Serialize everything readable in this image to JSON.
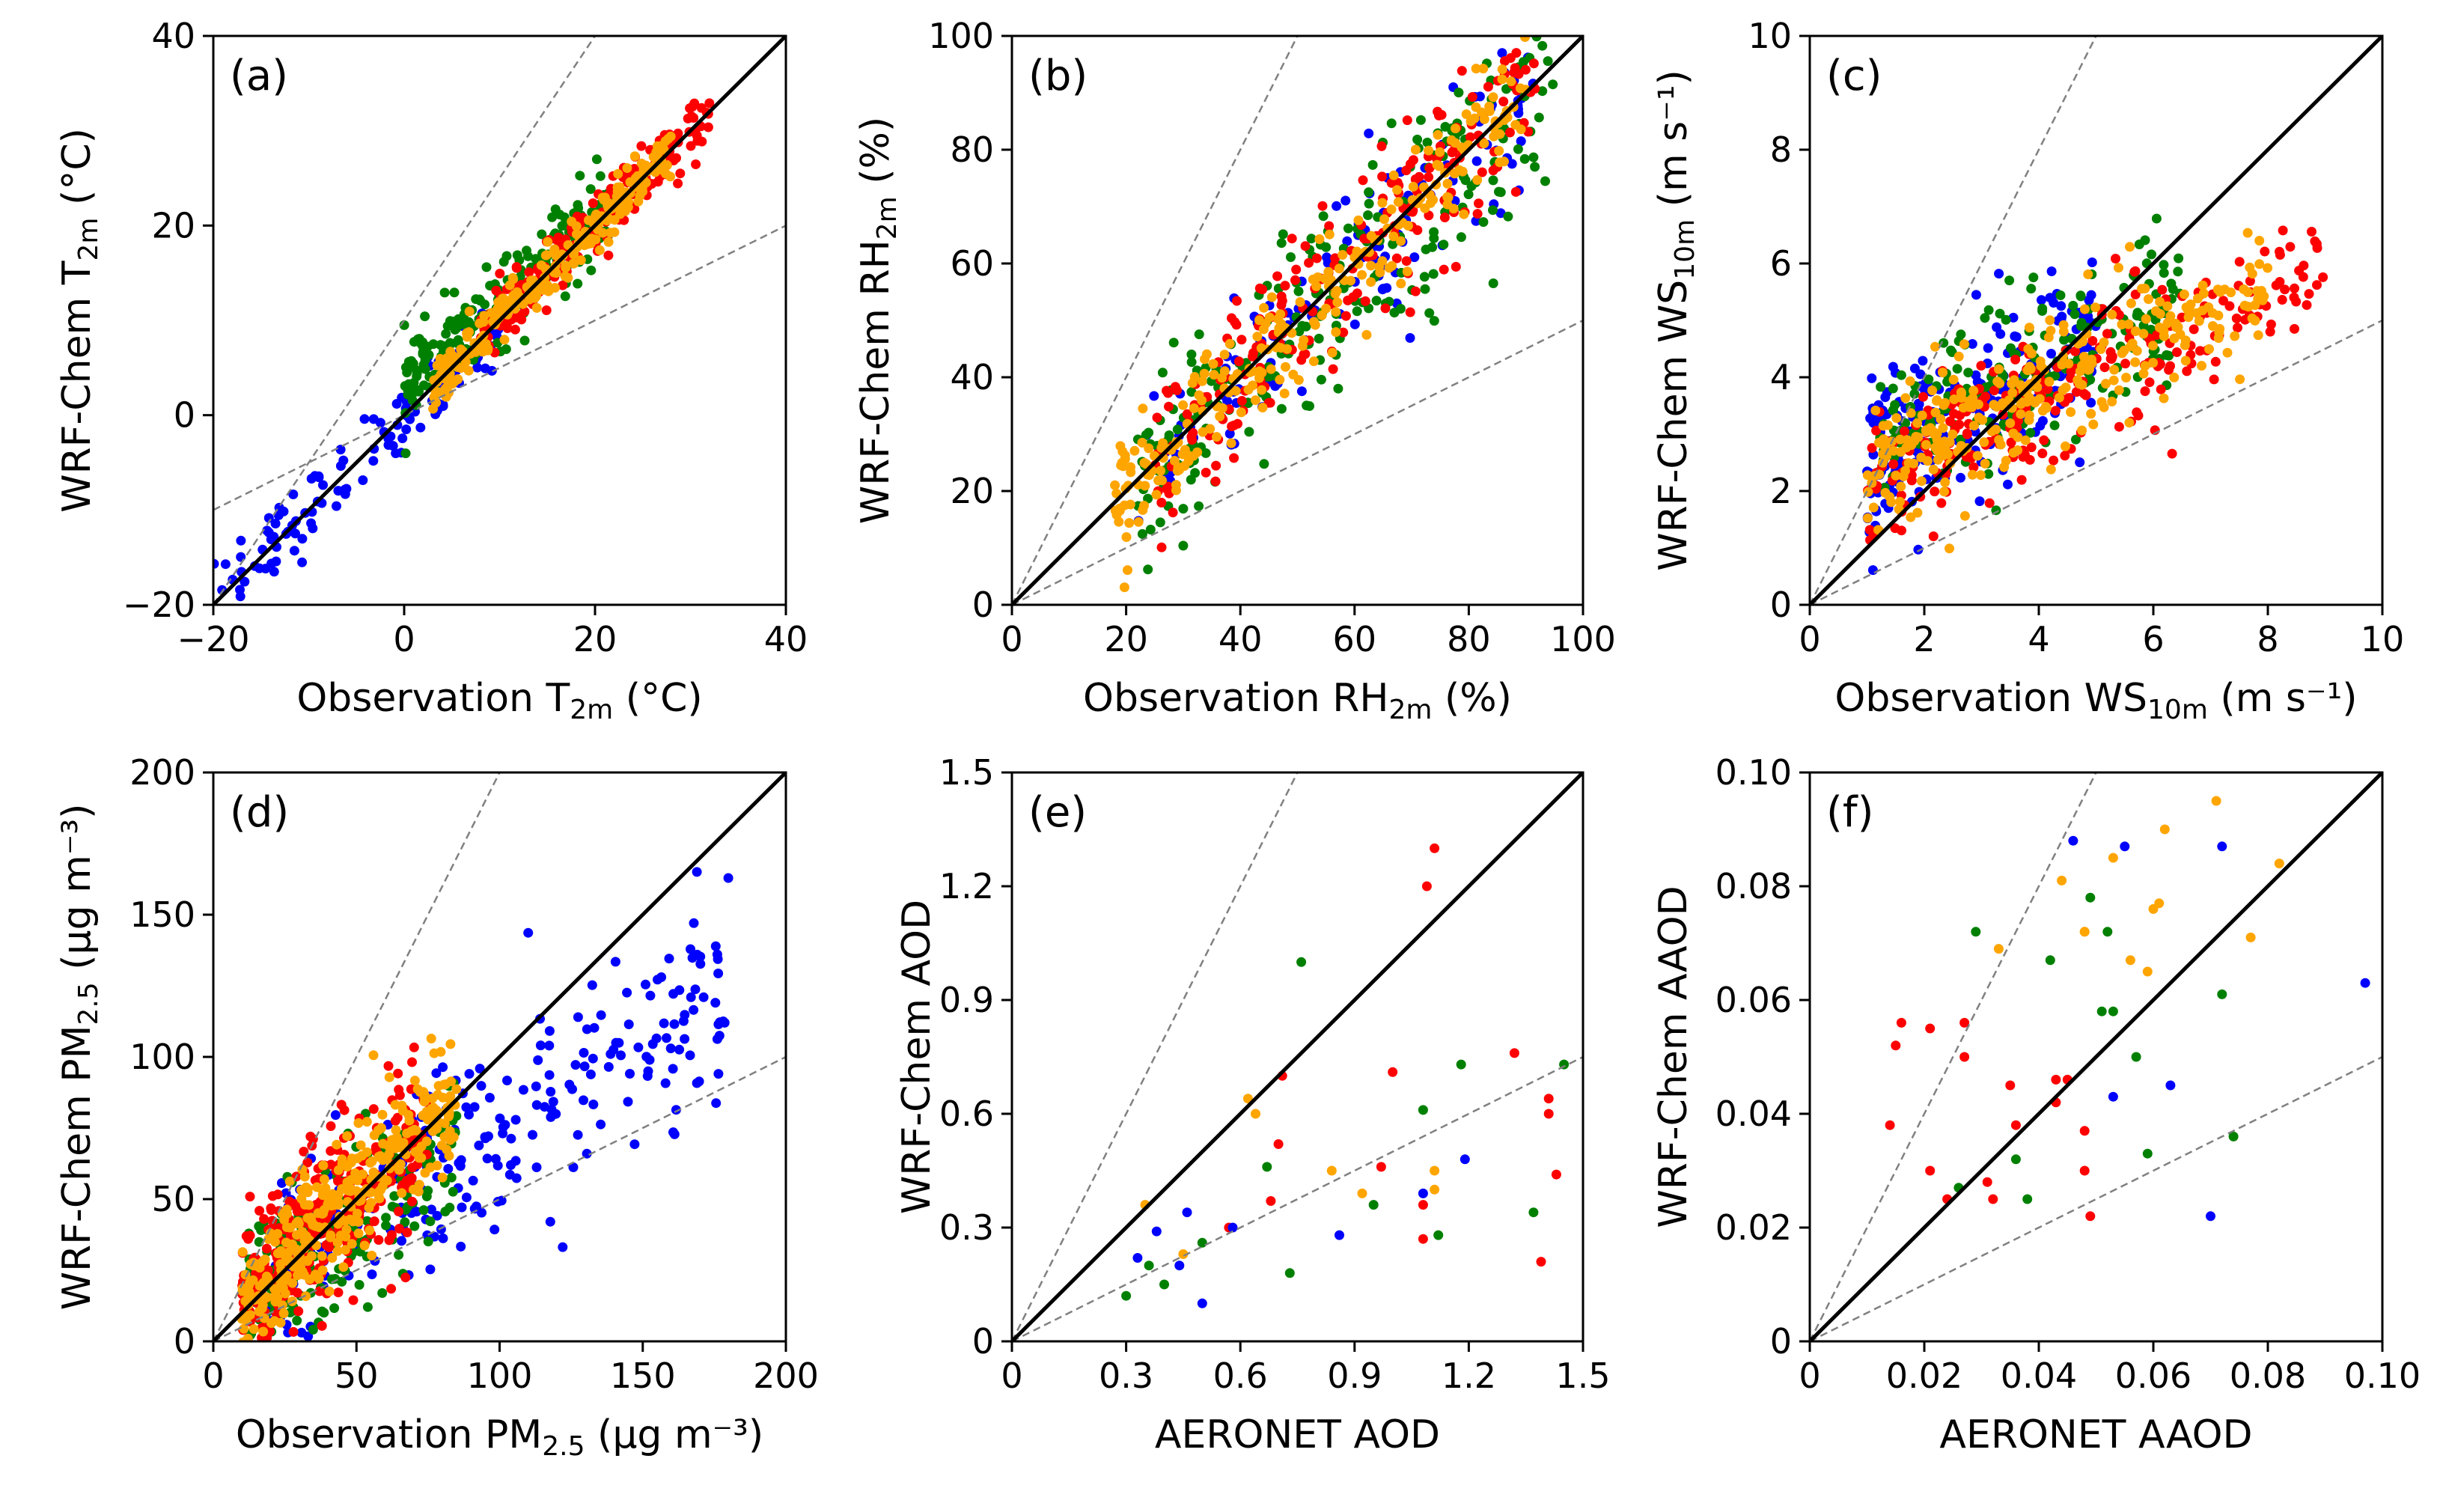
{
  "figure": {
    "series_colors": {
      "blue": "#0000ff",
      "green": "#008000",
      "red": "#ff0000",
      "orange": "#ffa500"
    },
    "line_colors": {
      "one_to_one": "#000000",
      "factor_two": "#808080"
    }
  },
  "chart_data": [
    {
      "panel": "(a)",
      "type": "scatter",
      "xlabel": {
        "main": "Observation T",
        "sub": "2m",
        "unit": " (°C)"
      },
      "ylabel": {
        "main": "WRF-Chem T",
        "sub": "2m",
        "unit": " (°C)"
      },
      "xlim": [
        -20,
        40
      ],
      "ylim": [
        -20,
        40
      ],
      "xticks": [
        -20,
        0,
        20,
        40
      ],
      "yticks": [
        -20,
        0,
        20,
        40
      ],
      "xtick_labels": [
        "−20",
        "0",
        "20",
        "40"
      ],
      "ytick_labels": [
        "−20",
        "0",
        "20",
        "40"
      ],
      "reference_lines": [
        "1:1",
        "2:1",
        "1:2"
      ],
      "clouds": [
        {
          "color": "blue",
          "n": 120,
          "x_range": [
            -20,
            10
          ],
          "slope": 1.0,
          "intercept": 0,
          "spread": 2.0
        },
        {
          "color": "green",
          "n": 220,
          "x_range": [
            0,
            22
          ],
          "slope": 0.85,
          "intercept": 3.5,
          "spread": 2.2
        },
        {
          "color": "red",
          "n": 220,
          "x_range": [
            8,
            32
          ],
          "slope": 1.0,
          "intercept": 0,
          "spread": 1.6
        },
        {
          "color": "orange",
          "n": 250,
          "x_range": [
            3,
            28
          ],
          "slope": 1.0,
          "intercept": 0,
          "spread": 1.3
        }
      ]
    },
    {
      "panel": "(b)",
      "type": "scatter",
      "xlabel": {
        "main": "Observation RH",
        "sub": "2m",
        "unit": " (%)"
      },
      "ylabel": {
        "main": "WRF-Chem RH",
        "sub": "2m",
        "unit": " (%)"
      },
      "xlim": [
        0,
        100
      ],
      "ylim": [
        0,
        100
      ],
      "xticks": [
        0,
        20,
        40,
        60,
        80,
        100
      ],
      "yticks": [
        0,
        20,
        40,
        60,
        80,
        100
      ],
      "xtick_labels": [
        "0",
        "20",
        "40",
        "60",
        "80",
        "100"
      ],
      "ytick_labels": [
        "0",
        "20",
        "40",
        "60",
        "80",
        "100"
      ],
      "reference_lines": [
        "1:1",
        "2:1",
        "1:2"
      ],
      "clouds": [
        {
          "color": "blue",
          "n": 130,
          "x_range": [
            22,
            92
          ],
          "slope": 1.0,
          "intercept": 0,
          "spread": 8
        },
        {
          "color": "green",
          "n": 230,
          "x_range": [
            22,
            95
          ],
          "slope": 0.95,
          "intercept": 0,
          "spread": 9
        },
        {
          "color": "red",
          "n": 220,
          "x_range": [
            25,
            92
          ],
          "slope": 1.0,
          "intercept": 0,
          "spread": 7
        },
        {
          "color": "orange",
          "n": 260,
          "x_range": [
            18,
            90
          ],
          "slope": 1.0,
          "intercept": 0,
          "spread": 5
        }
      ]
    },
    {
      "panel": "(c)",
      "type": "scatter",
      "xlabel": {
        "main": "Observation WS",
        "sub": "10m",
        "unit": " (m s⁻¹)"
      },
      "ylabel": {
        "main": "WRF-Chem WS",
        "sub": "10m",
        "unit": " (m s⁻¹)"
      },
      "xlim": [
        0,
        10
      ],
      "ylim": [
        0,
        10
      ],
      "xticks": [
        0,
        2,
        4,
        6,
        8,
        10
      ],
      "yticks": [
        0,
        2,
        4,
        6,
        8,
        10
      ],
      "xtick_labels": [
        "0",
        "2",
        "4",
        "6",
        "8",
        "10"
      ],
      "ytick_labels": [
        "0",
        "2",
        "4",
        "6",
        "8",
        "10"
      ],
      "reference_lines": [
        "1:1",
        "2:1",
        "1:2"
      ],
      "clouds": [
        {
          "color": "blue",
          "n": 220,
          "x_range": [
            1,
            5
          ],
          "slope": 0.5,
          "intercept": 2.0,
          "spread": 0.8
        },
        {
          "color": "green",
          "n": 200,
          "x_range": [
            1.2,
            6.5
          ],
          "slope": 0.45,
          "intercept": 2.3,
          "spread": 0.7
        },
        {
          "color": "red",
          "n": 260,
          "x_range": [
            1,
            9
          ],
          "slope": 0.45,
          "intercept": 1.8,
          "spread": 0.6
        },
        {
          "color": "orange",
          "n": 300,
          "x_range": [
            1,
            8
          ],
          "slope": 0.5,
          "intercept": 1.8,
          "spread": 0.6
        }
      ]
    },
    {
      "panel": "(d)",
      "type": "scatter",
      "xlabel": {
        "main": "Observation PM",
        "sub": "2.5",
        "unit": " (µg m⁻³)"
      },
      "ylabel": {
        "main": "WRF-Chem PM",
        "sub": "2.5",
        "unit": " (µg m⁻³)"
      },
      "xlim": [
        0,
        200
      ],
      "ylim": [
        0,
        200
      ],
      "xticks": [
        0,
        50,
        100,
        150,
        200
      ],
      "yticks": [
        0,
        50,
        100,
        150,
        200
      ],
      "xtick_labels": [
        "0",
        "50",
        "100",
        "150",
        "200"
      ],
      "ytick_labels": [
        "0",
        "50",
        "100",
        "150",
        "200"
      ],
      "reference_lines": [
        "1:1",
        "2:1",
        "1:2"
      ],
      "clouds": [
        {
          "color": "blue",
          "n": 260,
          "x_range": [
            20,
            180
          ],
          "slope": 0.65,
          "intercept": 8,
          "spread": 18
        },
        {
          "color": "green",
          "n": 200,
          "x_range": [
            12,
            85
          ],
          "slope": 0.7,
          "intercept": 8,
          "spread": 14
        },
        {
          "color": "red",
          "n": 320,
          "x_range": [
            10,
            75
          ],
          "slope": 0.95,
          "intercept": 5,
          "spread": 15
        },
        {
          "color": "orange",
          "n": 340,
          "x_range": [
            10,
            85
          ],
          "slope": 1.0,
          "intercept": 3,
          "spread": 11
        }
      ]
    },
    {
      "panel": "(e)",
      "type": "scatter",
      "xlabel": {
        "main": "AERONET AOD",
        "sub": "",
        "unit": ""
      },
      "ylabel": {
        "main": "WRF-Chem AOD",
        "sub": "",
        "unit": ""
      },
      "xlim": [
        0,
        1.5
      ],
      "ylim": [
        0,
        1.5
      ],
      "xticks": [
        0,
        0.3,
        0.6,
        0.9,
        1.2,
        1.5
      ],
      "yticks": [
        0,
        0.3,
        0.6,
        0.9,
        1.2,
        1.5
      ],
      "xtick_labels": [
        "0",
        "0.3",
        "0.6",
        "0.9",
        "1.2",
        "1.5"
      ],
      "ytick_labels": [
        "0",
        "0.3",
        "0.6",
        "0.9",
        "1.2",
        "1.5"
      ],
      "reference_lines": [
        "1:1",
        "2:1",
        "1:2"
      ],
      "points": [
        {
          "color": "red",
          "x": 1.11,
          "y": 1.3
        },
        {
          "color": "red",
          "x": 1.09,
          "y": 1.2
        },
        {
          "color": "red",
          "x": 0.71,
          "y": 0.7
        },
        {
          "color": "red",
          "x": 1.0,
          "y": 0.71
        },
        {
          "color": "red",
          "x": 1.32,
          "y": 0.76
        },
        {
          "color": "red",
          "x": 1.41,
          "y": 0.64
        },
        {
          "color": "red",
          "x": 1.41,
          "y": 0.6
        },
        {
          "color": "red",
          "x": 1.43,
          "y": 0.44
        },
        {
          "color": "red",
          "x": 1.39,
          "y": 0.21
        },
        {
          "color": "red",
          "x": 1.08,
          "y": 0.36
        },
        {
          "color": "red",
          "x": 1.08,
          "y": 0.27
        },
        {
          "color": "red",
          "x": 0.97,
          "y": 0.46
        },
        {
          "color": "red",
          "x": 0.7,
          "y": 0.52
        },
        {
          "color": "red",
          "x": 0.68,
          "y": 0.37
        },
        {
          "color": "red",
          "x": 0.57,
          "y": 0.3
        },
        {
          "color": "green",
          "x": 0.76,
          "y": 1.0
        },
        {
          "color": "green",
          "x": 1.18,
          "y": 0.73
        },
        {
          "color": "green",
          "x": 1.45,
          "y": 0.73
        },
        {
          "color": "green",
          "x": 1.08,
          "y": 0.61
        },
        {
          "color": "green",
          "x": 0.95,
          "y": 0.36
        },
        {
          "color": "green",
          "x": 0.67,
          "y": 0.46
        },
        {
          "color": "green",
          "x": 0.36,
          "y": 0.2
        },
        {
          "color": "green",
          "x": 0.4,
          "y": 0.15
        },
        {
          "color": "green",
          "x": 0.3,
          "y": 0.12
        },
        {
          "color": "green",
          "x": 0.5,
          "y": 0.26
        },
        {
          "color": "green",
          "x": 1.12,
          "y": 0.28
        },
        {
          "color": "green",
          "x": 1.37,
          "y": 0.34
        },
        {
          "color": "green",
          "x": 0.73,
          "y": 0.18
        },
        {
          "color": "orange",
          "x": 0.35,
          "y": 0.36
        },
        {
          "color": "orange",
          "x": 0.64,
          "y": 0.6
        },
        {
          "color": "orange",
          "x": 0.62,
          "y": 0.64
        },
        {
          "color": "orange",
          "x": 0.84,
          "y": 0.45
        },
        {
          "color": "orange",
          "x": 0.92,
          "y": 0.39
        },
        {
          "color": "orange",
          "x": 1.11,
          "y": 0.45
        },
        {
          "color": "orange",
          "x": 1.11,
          "y": 0.4
        },
        {
          "color": "orange",
          "x": 0.45,
          "y": 0.23
        },
        {
          "color": "blue",
          "x": 0.33,
          "y": 0.22
        },
        {
          "color": "blue",
          "x": 0.38,
          "y": 0.29
        },
        {
          "color": "blue",
          "x": 0.46,
          "y": 0.34
        },
        {
          "color": "blue",
          "x": 0.5,
          "y": 0.1
        },
        {
          "color": "blue",
          "x": 0.44,
          "y": 0.2
        },
        {
          "color": "blue",
          "x": 0.86,
          "y": 0.28
        },
        {
          "color": "blue",
          "x": 1.19,
          "y": 0.48
        },
        {
          "color": "blue",
          "x": 1.08,
          "y": 0.39
        },
        {
          "color": "blue",
          "x": 0.58,
          "y": 0.3
        }
      ]
    },
    {
      "panel": "(f)",
      "type": "scatter",
      "xlabel": {
        "main": "AERONET AAOD",
        "sub": "",
        "unit": ""
      },
      "ylabel": {
        "main": "WRF-Chem AAOD",
        "sub": "",
        "unit": ""
      },
      "xlim": [
        0,
        0.1
      ],
      "ylim": [
        0,
        0.1
      ],
      "xticks": [
        0,
        0.02,
        0.04,
        0.06,
        0.08,
        0.1
      ],
      "yticks": [
        0,
        0.02,
        0.04,
        0.06,
        0.08,
        0.1
      ],
      "xtick_labels": [
        "0",
        "0.02",
        "0.04",
        "0.06",
        "0.08",
        "0.10"
      ],
      "ytick_labels": [
        "0",
        "0.02",
        "0.04",
        "0.06",
        "0.08",
        "0.10"
      ],
      "reference_lines": [
        "1:1",
        "2:1",
        "1:2"
      ],
      "points": [
        {
          "color": "red",
          "x": 0.015,
          "y": 0.052
        },
        {
          "color": "red",
          "x": 0.016,
          "y": 0.056
        },
        {
          "color": "red",
          "x": 0.021,
          "y": 0.055
        },
        {
          "color": "red",
          "x": 0.014,
          "y": 0.038
        },
        {
          "color": "red",
          "x": 0.021,
          "y": 0.03
        },
        {
          "color": "red",
          "x": 0.027,
          "y": 0.056
        },
        {
          "color": "red",
          "x": 0.027,
          "y": 0.05
        },
        {
          "color": "red",
          "x": 0.031,
          "y": 0.028
        },
        {
          "color": "red",
          "x": 0.032,
          "y": 0.025
        },
        {
          "color": "red",
          "x": 0.035,
          "y": 0.045
        },
        {
          "color": "red",
          "x": 0.036,
          "y": 0.038
        },
        {
          "color": "red",
          "x": 0.043,
          "y": 0.046
        },
        {
          "color": "red",
          "x": 0.045,
          "y": 0.046
        },
        {
          "color": "red",
          "x": 0.048,
          "y": 0.037
        },
        {
          "color": "red",
          "x": 0.048,
          "y": 0.03
        },
        {
          "color": "red",
          "x": 0.049,
          "y": 0.022
        },
        {
          "color": "red",
          "x": 0.043,
          "y": 0.042
        },
        {
          "color": "red",
          "x": 0.024,
          "y": 0.025
        },
        {
          "color": "green",
          "x": 0.029,
          "y": 0.072
        },
        {
          "color": "green",
          "x": 0.042,
          "y": 0.067
        },
        {
          "color": "green",
          "x": 0.049,
          "y": 0.078
        },
        {
          "color": "green",
          "x": 0.052,
          "y": 0.072
        },
        {
          "color": "green",
          "x": 0.053,
          "y": 0.058
        },
        {
          "color": "green",
          "x": 0.051,
          "y": 0.058
        },
        {
          "color": "green",
          "x": 0.057,
          "y": 0.05
        },
        {
          "color": "green",
          "x": 0.059,
          "y": 0.033
        },
        {
          "color": "green",
          "x": 0.072,
          "y": 0.061
        },
        {
          "color": "green",
          "x": 0.074,
          "y": 0.036
        },
        {
          "color": "green",
          "x": 0.036,
          "y": 0.032
        },
        {
          "color": "green",
          "x": 0.038,
          "y": 0.025
        },
        {
          "color": "green",
          "x": 0.026,
          "y": 0.027
        },
        {
          "color": "orange",
          "x": 0.033,
          "y": 0.069
        },
        {
          "color": "orange",
          "x": 0.044,
          "y": 0.081
        },
        {
          "color": "orange",
          "x": 0.048,
          "y": 0.072
        },
        {
          "color": "orange",
          "x": 0.053,
          "y": 0.085
        },
        {
          "color": "orange",
          "x": 0.062,
          "y": 0.09
        },
        {
          "color": "orange",
          "x": 0.071,
          "y": 0.095
        },
        {
          "color": "orange",
          "x": 0.06,
          "y": 0.076
        },
        {
          "color": "orange",
          "x": 0.061,
          "y": 0.077
        },
        {
          "color": "orange",
          "x": 0.059,
          "y": 0.065
        },
        {
          "color": "orange",
          "x": 0.056,
          "y": 0.067
        },
        {
          "color": "orange",
          "x": 0.077,
          "y": 0.071
        },
        {
          "color": "orange",
          "x": 0.082,
          "y": 0.084
        },
        {
          "color": "orange",
          "x": 0.048,
          "y": 0.072
        },
        {
          "color": "blue",
          "x": 0.046,
          "y": 0.088
        },
        {
          "color": "blue",
          "x": 0.055,
          "y": 0.087
        },
        {
          "color": "blue",
          "x": 0.072,
          "y": 0.087
        },
        {
          "color": "blue",
          "x": 0.063,
          "y": 0.045
        },
        {
          "color": "blue",
          "x": 0.07,
          "y": 0.022
        },
        {
          "color": "blue",
          "x": 0.097,
          "y": 0.063
        },
        {
          "color": "blue",
          "x": 0.053,
          "y": 0.043
        }
      ]
    }
  ]
}
